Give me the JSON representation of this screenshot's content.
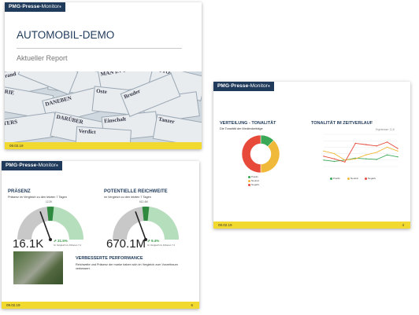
{
  "brand": {
    "logo_left": "PMG",
    "logo_sep": "·",
    "logo_mid": "Presse",
    "logo_dash": "-",
    "logo_right": "Monitor",
    "logo_reg": "®"
  },
  "slide1": {
    "title": "AUTOMOBIL-DEMO",
    "subtitle": "Aktueller Report",
    "date": "09.02.19",
    "newspaper_words": [
      "Brand",
      "sponsorn",
      "MAN IN TANNES",
      "TOTO-",
      "ERIE",
      "DANEBEN",
      "Oste",
      "Ziele",
      "TERS",
      "DARÜBER",
      "Einschalt",
      "Tanzer",
      "SEHNEN",
      "Bruder",
      "Verdict"
    ]
  },
  "slide2": {
    "date": "09.02.19",
    "page": "4",
    "left_title": "VERTEILUNG - TONALITÄT",
    "left_sub": "Die Tonalität der Medienbeiträge",
    "right_title": "TONALITÄT IM ZEITVERLAUF",
    "right_note": "Ergebnisse: 11,8",
    "colors": {
      "positiv": "#3aa856",
      "neutral": "#f0b93a",
      "negativ": "#e84a3a"
    }
  },
  "slide3": {
    "date": "09.02.19",
    "page": "6",
    "k1_title": "PRÄSENZ",
    "k1_sub": "Präsenz im Vergleich zu den letzten 7 Tagen",
    "k1_top": "12.2K",
    "k1_value": "16.1K",
    "k1_pct": "31.5%",
    "k1_pctsub": "Im Vergleich zu früheren 7 d",
    "k2_title": "POTENTIELLE REICHWEITE",
    "k2_sub": "im Vergleich zu den letzten 7 Tagen",
    "k2_top": "612.4M",
    "k2_value": "670.1M",
    "k2_pct": "9.4%",
    "k2_pctsub": "Im Vergleich zu früheren 7 d",
    "perf_title": "VERBESSERTE PERFORMANCE",
    "perf_text": "Reichweite und Präsenz der marke haben sich im Vergleich zum Vorzeitraum verbessert.",
    "gauge_colors": {
      "bg": "#c8c8c8",
      "range": "#b5dfbc",
      "mark": "#2f8a3f"
    }
  },
  "chart_data": [
    {
      "type": "pie",
      "categories": [
        "Positiv",
        "Neutral",
        "Negativ"
      ],
      "values": [
        12,
        38,
        50
      ]
    },
    {
      "type": "line",
      "x": [
        1,
        2,
        3,
        4,
        5,
        6,
        7,
        8
      ],
      "series": [
        {
          "name": "Positiv",
          "values": [
            1,
            0.8,
            1,
            1.3,
            1.2,
            1.1,
            1.8,
            1.5
          ]
        },
        {
          "name": "Neutral",
          "values": [
            2.4,
            2,
            1,
            1.2,
            1.8,
            2.2,
            3,
            2.4
          ]
        },
        {
          "name": "Negativ",
          "values": [
            1.6,
            1.2,
            0.7,
            3.6,
            3.4,
            3.2,
            3.8,
            2.8
          ]
        }
      ],
      "ylim": [
        0,
        5
      ]
    }
  ]
}
